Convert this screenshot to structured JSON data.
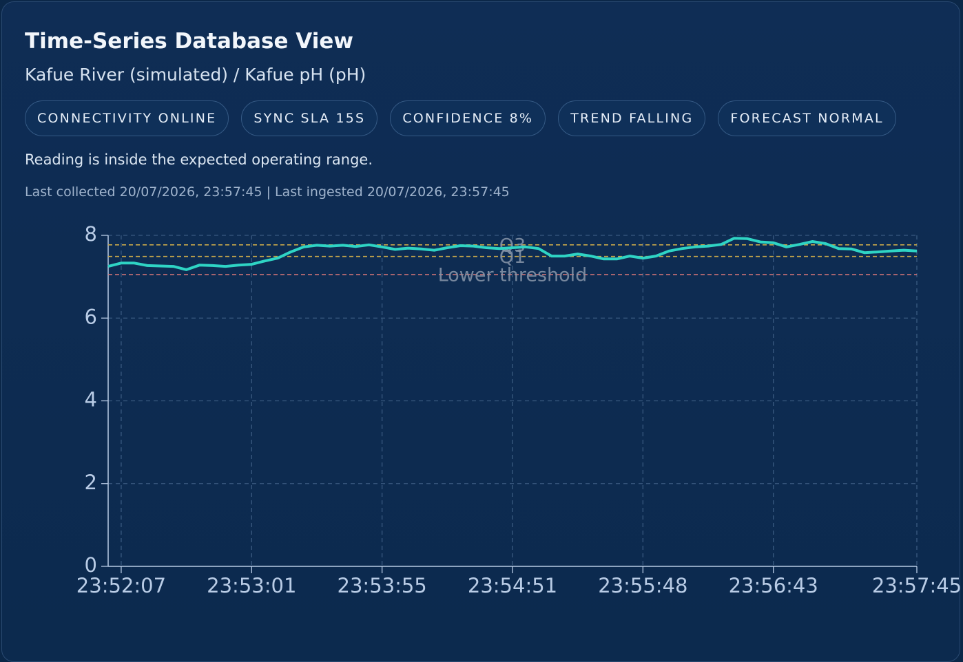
{
  "header": {
    "title": "Time-Series Database View",
    "subtitle": "Kafue River (simulated) / Kafue pH (pH)",
    "badges": [
      "CONNECTIVITY ONLINE",
      "SYNC SLA 15S",
      "CONFIDENCE 8%",
      "TREND FALLING",
      "FORECAST NORMAL"
    ],
    "message": "Reading is inside the expected operating range.",
    "timestamps": "Last collected 20/07/2026, 23:57:45 | Last ingested 20/07/2026, 23:57:45"
  },
  "chart_data": {
    "type": "line",
    "categories": [
      null,
      "23:52:07",
      null,
      null,
      null,
      null,
      null,
      null,
      null,
      null,
      null,
      "23:53:01",
      null,
      null,
      null,
      null,
      null,
      null,
      null,
      null,
      null,
      "23:53:55",
      null,
      null,
      null,
      null,
      null,
      null,
      null,
      null,
      null,
      "23:54:51",
      null,
      null,
      null,
      null,
      null,
      null,
      null,
      null,
      null,
      "23:55:48",
      null,
      null,
      null,
      null,
      null,
      null,
      null,
      null,
      null,
      "23:56:43",
      null,
      null,
      null,
      null,
      null,
      null,
      null,
      null,
      null,
      null,
      "23:57:45"
    ],
    "series": [
      {
        "color": "#2fd4c4",
        "values": [
          7.25,
          7.33,
          7.33,
          7.27,
          7.26,
          7.25,
          7.17,
          7.28,
          7.27,
          7.25,
          7.28,
          7.3,
          7.38,
          7.45,
          7.6,
          7.72,
          7.76,
          7.74,
          7.76,
          7.73,
          7.77,
          7.72,
          7.66,
          7.69,
          7.67,
          7.64,
          7.7,
          7.75,
          7.74,
          7.7,
          7.68,
          7.7,
          7.72,
          7.68,
          7.5,
          7.5,
          7.55,
          7.5,
          7.43,
          7.43,
          7.5,
          7.45,
          7.5,
          7.62,
          7.68,
          7.72,
          7.74,
          7.78,
          7.93,
          7.92,
          7.84,
          7.82,
          7.72,
          7.78,
          7.85,
          7.8,
          7.68,
          7.67,
          7.58,
          7.6,
          7.62,
          7.64,
          7.62
        ]
      }
    ],
    "reference_lines": [
      {
        "label": "Q3",
        "value": 7.77,
        "color": "#c9a94a"
      },
      {
        "label": "Q1",
        "value": 7.49,
        "color": "#c9a94a"
      },
      {
        "label": "Lower threshold",
        "value": 7.05,
        "color": "#e07a7a"
      }
    ],
    "ylim": [
      0,
      8
    ],
    "yticks": [
      0,
      2,
      4,
      6,
      8
    ],
    "grid": true
  }
}
